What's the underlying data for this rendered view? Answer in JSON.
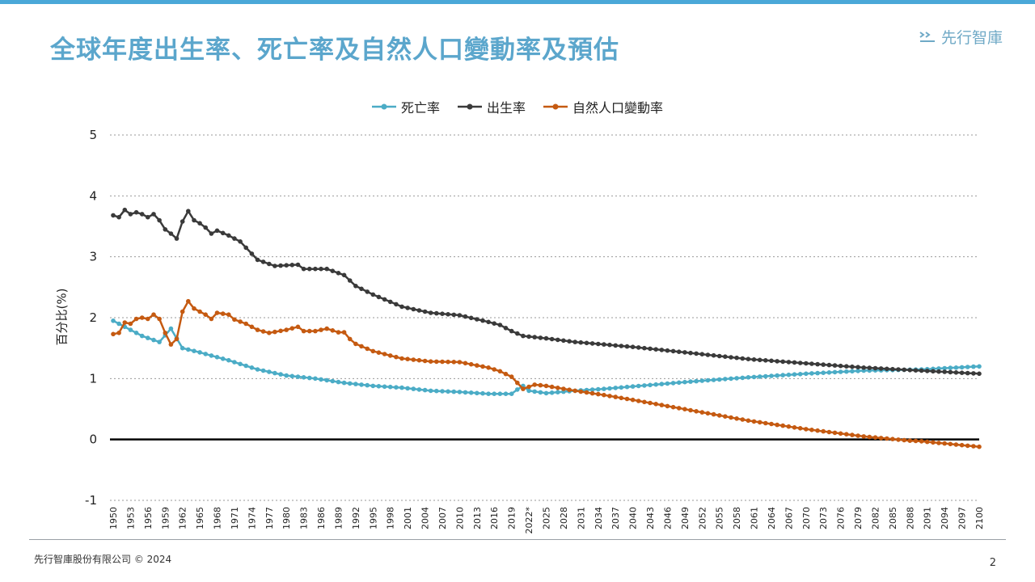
{
  "slide": {
    "title": "全球年度出生率、死亡率及自然人口變動率及預估",
    "logo_text": "先行智庫",
    "footer": "先行智庫股份有限公司 © 2024",
    "page_number": "2",
    "accent_color": "#4AA8D8"
  },
  "chart_data": {
    "type": "line",
    "title": "",
    "ylabel": "百分比(%)",
    "xlabel": "",
    "ylim": [
      -1,
      5
    ],
    "yticks": [
      -1,
      0,
      1,
      2,
      3,
      4,
      5
    ],
    "grid": "horizontal dotted",
    "legend_position": "top-center",
    "x_tick_labels": [
      "1950",
      "1953",
      "1956",
      "1959",
      "1962",
      "1965",
      "1968",
      "1971",
      "1974",
      "1977",
      "1980",
      "1983",
      "1986",
      "1989",
      "1992",
      "1995",
      "1998",
      "2001",
      "2004",
      "2007",
      "2010",
      "2013",
      "2016",
      "2019",
      "2022*",
      "2025",
      "2028",
      "2031",
      "2034",
      "2037",
      "2040",
      "2043",
      "2046",
      "2049",
      "2052",
      "2055",
      "2058",
      "2061",
      "2064",
      "2067",
      "2070",
      "2073",
      "2076",
      "2079",
      "2082",
      "2085",
      "2088",
      "2091",
      "2094",
      "2097",
      "2100"
    ],
    "x_start": 1950,
    "x_end": 2100,
    "series": [
      {
        "name": "死亡率",
        "color": "#4BACC6",
        "keypoints": [
          [
            1950,
            1.95
          ],
          [
            1953,
            1.8
          ],
          [
            1955,
            1.7
          ],
          [
            1958,
            1.6
          ],
          [
            1960,
            1.82
          ],
          [
            1962,
            1.5
          ],
          [
            1965,
            1.43
          ],
          [
            1970,
            1.3
          ],
          [
            1975,
            1.15
          ],
          [
            1980,
            1.05
          ],
          [
            1985,
            1.0
          ],
          [
            1990,
            0.93
          ],
          [
            1995,
            0.88
          ],
          [
            2000,
            0.85
          ],
          [
            2005,
            0.8
          ],
          [
            2010,
            0.78
          ],
          [
            2015,
            0.75
          ],
          [
            2019,
            0.75
          ],
          [
            2020,
            0.82
          ],
          [
            2021,
            0.88
          ],
          [
            2022,
            0.8
          ],
          [
            2025,
            0.76
          ],
          [
            2030,
            0.8
          ],
          [
            2035,
            0.83
          ],
          [
            2040,
            0.87
          ],
          [
            2050,
            0.95
          ],
          [
            2060,
            1.02
          ],
          [
            2070,
            1.08
          ],
          [
            2080,
            1.13
          ],
          [
            2090,
            1.15
          ],
          [
            2100,
            1.2
          ]
        ]
      },
      {
        "name": "出生率",
        "color": "#3A3A3A",
        "keypoints": [
          [
            1950,
            3.68
          ],
          [
            1951,
            3.65
          ],
          [
            1952,
            3.77
          ],
          [
            1953,
            3.7
          ],
          [
            1954,
            3.73
          ],
          [
            1955,
            3.7
          ],
          [
            1956,
            3.65
          ],
          [
            1957,
            3.7
          ],
          [
            1958,
            3.6
          ],
          [
            1959,
            3.45
          ],
          [
            1960,
            3.38
          ],
          [
            1961,
            3.3
          ],
          [
            1962,
            3.58
          ],
          [
            1963,
            3.75
          ],
          [
            1964,
            3.6
          ],
          [
            1965,
            3.55
          ],
          [
            1966,
            3.48
          ],
          [
            1967,
            3.38
          ],
          [
            1968,
            3.43
          ],
          [
            1970,
            3.35
          ],
          [
            1972,
            3.25
          ],
          [
            1975,
            2.95
          ],
          [
            1978,
            2.85
          ],
          [
            1982,
            2.87
          ],
          [
            1983,
            2.8
          ],
          [
            1987,
            2.8
          ],
          [
            1990,
            2.7
          ],
          [
            1992,
            2.52
          ],
          [
            1995,
            2.38
          ],
          [
            2000,
            2.18
          ],
          [
            2005,
            2.08
          ],
          [
            2010,
            2.04
          ],
          [
            2015,
            1.93
          ],
          [
            2017,
            1.88
          ],
          [
            2019,
            1.78
          ],
          [
            2021,
            1.7
          ],
          [
            2025,
            1.66
          ],
          [
            2030,
            1.6
          ],
          [
            2035,
            1.56
          ],
          [
            2040,
            1.52
          ],
          [
            2050,
            1.42
          ],
          [
            2060,
            1.32
          ],
          [
            2070,
            1.25
          ],
          [
            2080,
            1.18
          ],
          [
            2090,
            1.13
          ],
          [
            2100,
            1.08
          ]
        ]
      },
      {
        "name": "自然人口變動率",
        "color": "#C55A11",
        "keypoints": [
          [
            1950,
            1.73
          ],
          [
            1951,
            1.75
          ],
          [
            1952,
            1.92
          ],
          [
            1953,
            1.9
          ],
          [
            1954,
            1.98
          ],
          [
            1955,
            2.0
          ],
          [
            1956,
            1.98
          ],
          [
            1957,
            2.05
          ],
          [
            1958,
            1.98
          ],
          [
            1959,
            1.75
          ],
          [
            1960,
            1.56
          ],
          [
            1961,
            1.65
          ],
          [
            1962,
            2.1
          ],
          [
            1963,
            2.27
          ],
          [
            1964,
            2.15
          ],
          [
            1965,
            2.1
          ],
          [
            1966,
            2.05
          ],
          [
            1967,
            1.98
          ],
          [
            1968,
            2.08
          ],
          [
            1970,
            2.05
          ],
          [
            1971,
            1.97
          ],
          [
            1973,
            1.9
          ],
          [
            1975,
            1.8
          ],
          [
            1977,
            1.75
          ],
          [
            1980,
            1.8
          ],
          [
            1982,
            1.85
          ],
          [
            1983,
            1.78
          ],
          [
            1985,
            1.78
          ],
          [
            1987,
            1.82
          ],
          [
            1989,
            1.76
          ],
          [
            1990,
            1.76
          ],
          [
            1991,
            1.65
          ],
          [
            1992,
            1.57
          ],
          [
            1995,
            1.45
          ],
          [
            2000,
            1.33
          ],
          [
            2005,
            1.28
          ],
          [
            2010,
            1.27
          ],
          [
            2015,
            1.18
          ],
          [
            2017,
            1.12
          ],
          [
            2019,
            1.03
          ],
          [
            2020,
            0.93
          ],
          [
            2021,
            0.83
          ],
          [
            2023,
            0.9
          ],
          [
            2025,
            0.88
          ],
          [
            2030,
            0.8
          ],
          [
            2035,
            0.73
          ],
          [
            2040,
            0.65
          ],
          [
            2050,
            0.48
          ],
          [
            2060,
            0.31
          ],
          [
            2070,
            0.17
          ],
          [
            2080,
            0.05
          ],
          [
            2088,
            -0.02
          ],
          [
            2090,
            -0.03
          ],
          [
            2100,
            -0.12
          ]
        ]
      }
    ]
  }
}
